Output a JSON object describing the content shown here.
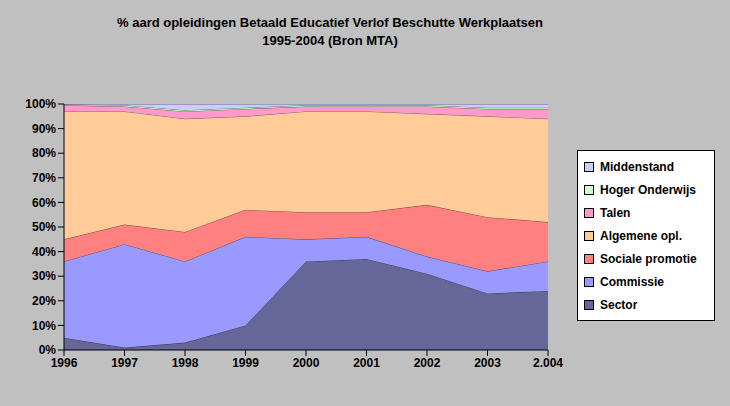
{
  "chart_data": {
    "type": "area",
    "title": "% aard opleidingen Betaald Educatief Verlof Beschutte Werkplaatsen",
    "subtitle": "1995-2004 (Bron MTA)",
    "stacked": true,
    "legend": "right",
    "grid": false,
    "categories": [
      "1996",
      "1997",
      "1998",
      "1999",
      "2000",
      "2001",
      "2002",
      "2003",
      "2.004"
    ],
    "ylim": [
      0,
      100
    ],
    "yticks": [
      {
        "value": 0,
        "label": "0%"
      },
      {
        "value": 10,
        "label": "10%"
      },
      {
        "value": 20,
        "label": "20%"
      },
      {
        "value": 30,
        "label": "30%"
      },
      {
        "value": 40,
        "label": "40%"
      },
      {
        "value": 50,
        "label": "50%"
      },
      {
        "value": 60,
        "label": "60%"
      },
      {
        "value": 70,
        "label": "70%"
      },
      {
        "value": 80,
        "label": "80%"
      },
      {
        "value": 90,
        "label": "90%"
      },
      {
        "value": 100,
        "label": "100%"
      }
    ],
    "series": [
      {
        "name": "Sector",
        "color": "#666699",
        "values": [
          5,
          1,
          3,
          10,
          36,
          37,
          31,
          23,
          24
        ]
      },
      {
        "name": "Commissie",
        "color": "#9999ff",
        "values": [
          31,
          42,
          33,
          36,
          9,
          9,
          7,
          9,
          12
        ]
      },
      {
        "name": "Sociale promotie",
        "color": "#ff8080",
        "values": [
          9,
          8,
          12,
          11,
          11,
          10,
          21,
          22,
          16
        ]
      },
      {
        "name": "Algemene opl.",
        "color": "#ffcc99",
        "values": [
          52,
          46,
          46,
          38,
          41,
          41,
          37,
          41,
          42
        ]
      },
      {
        "name": "Talen",
        "color": "#ff99cc",
        "values": [
          2.5,
          2,
          3,
          3,
          2,
          2,
          3,
          3,
          4
        ]
      },
      {
        "name": "Hoger Onderwijs",
        "color": "#ccffcc",
        "values": [
          0.3,
          0.5,
          0.5,
          0.5,
          0.5,
          0.5,
          0.5,
          0.5,
          0.5
        ]
      },
      {
        "name": "Middenstand",
        "color": "#ccccff",
        "values": [
          0.2,
          0.5,
          2.5,
          1.5,
          0.5,
          0.5,
          0.5,
          1.5,
          1.5
        ]
      }
    ]
  }
}
